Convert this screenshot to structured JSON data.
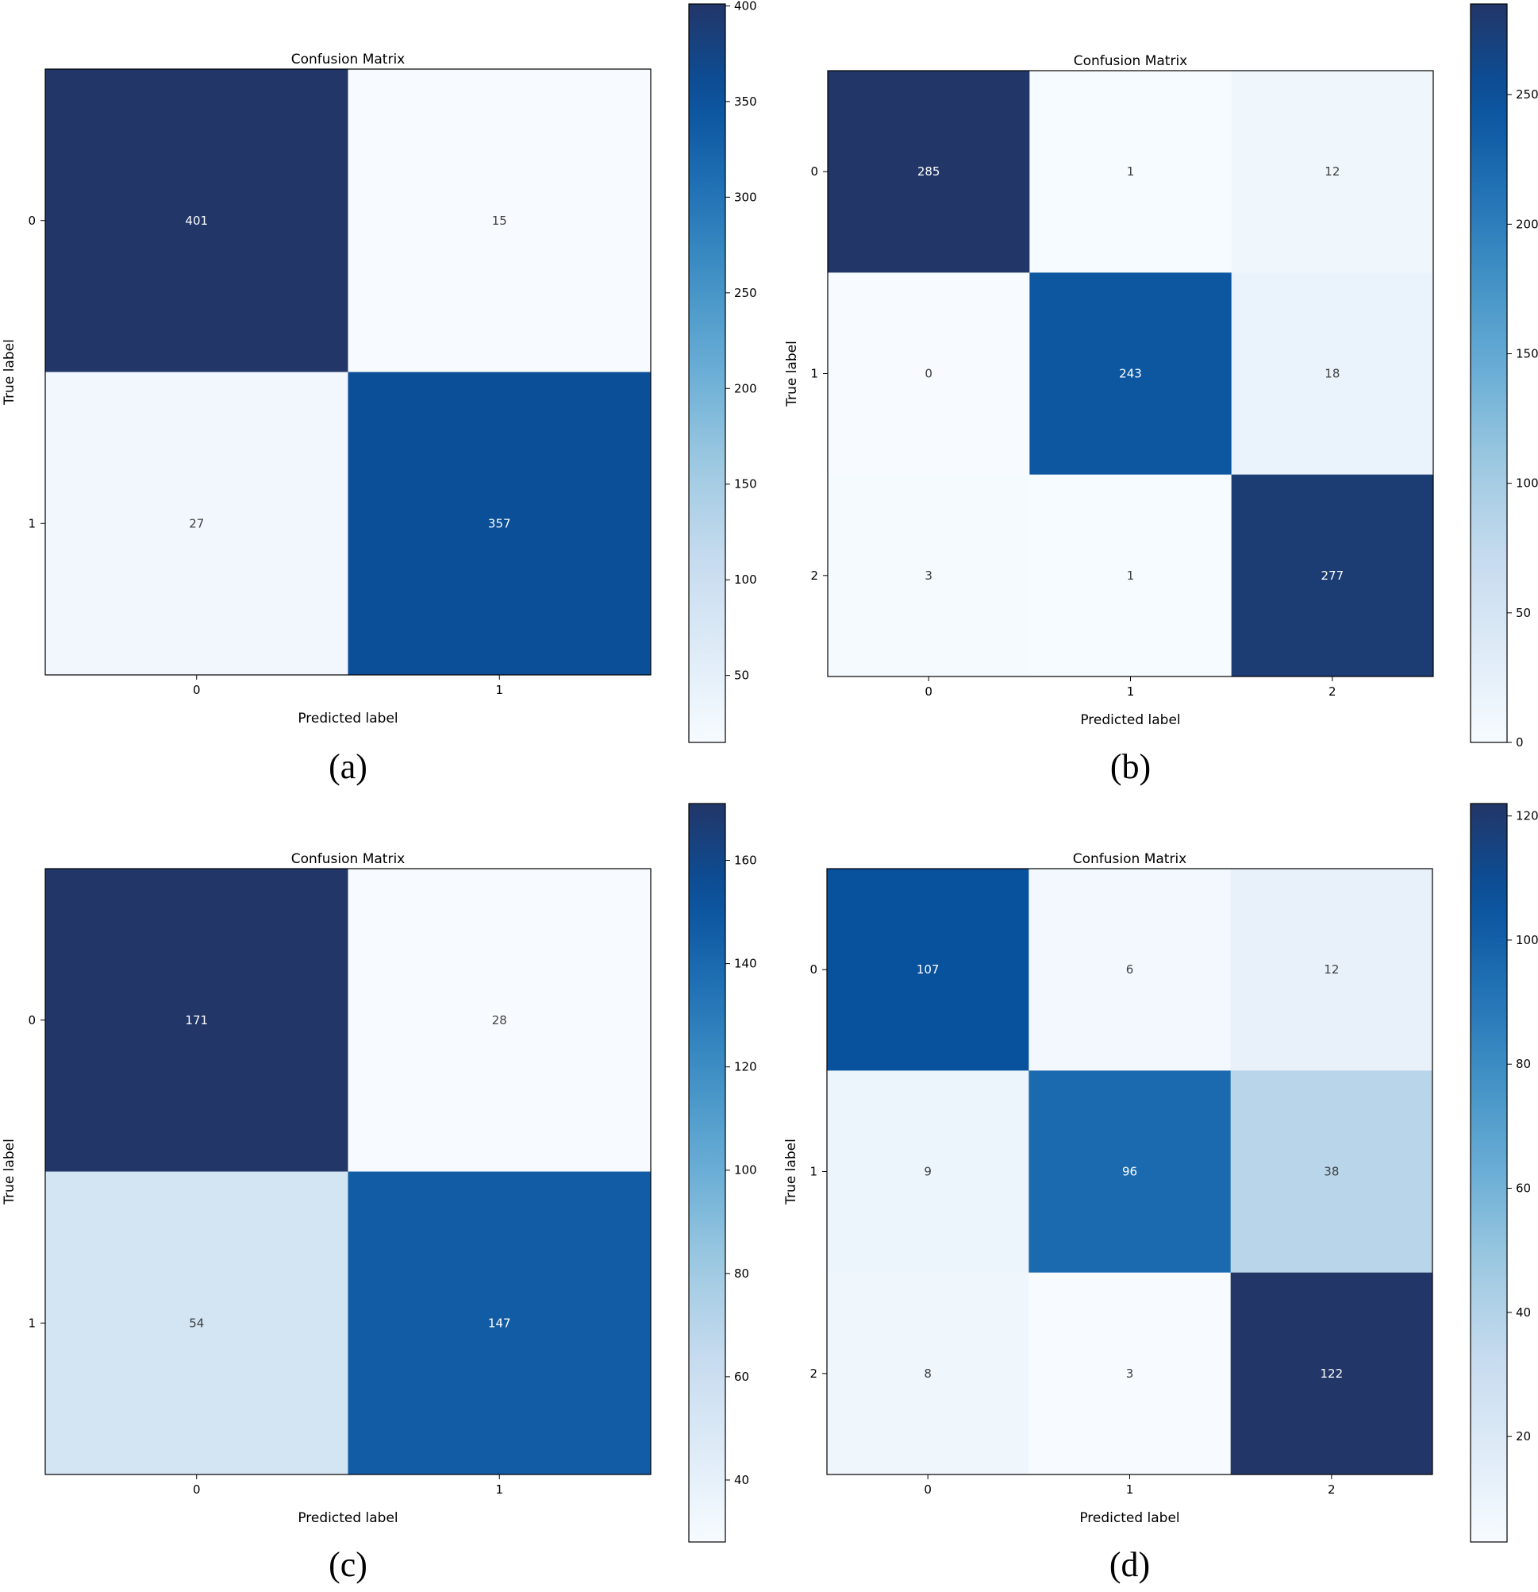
{
  "chart_data": [
    {
      "type": "heatmap",
      "panel": "(a)",
      "title": "Confusion Matrix",
      "xlabel": "Predicted label",
      "ylabel": "True label",
      "x_ticks": [
        "0",
        "1"
      ],
      "y_ticks": [
        "0",
        "1"
      ],
      "matrix": [
        [
          401,
          15
        ],
        [
          27,
          357
        ]
      ],
      "colorbar": {
        "range": [
          15,
          401
        ],
        "ticks": [
          50,
          100,
          150,
          200,
          250,
          300,
          350,
          400
        ],
        "colormap": "Blues"
      }
    },
    {
      "type": "heatmap",
      "panel": "(b)",
      "title": "Confusion Matrix",
      "xlabel": "Predicted label",
      "ylabel": "True label",
      "x_ticks": [
        "0",
        "1",
        "2"
      ],
      "y_ticks": [
        "0",
        "1",
        "2"
      ],
      "matrix": [
        [
          285,
          1,
          12
        ],
        [
          0,
          243,
          18
        ],
        [
          3,
          1,
          277
        ]
      ],
      "colorbar": {
        "range": [
          0,
          285
        ],
        "ticks": [
          0,
          50,
          100,
          150,
          200,
          250
        ],
        "colormap": "Blues"
      }
    },
    {
      "type": "heatmap",
      "panel": "(c)",
      "title": "Confusion Matrix",
      "xlabel": "Predicted label",
      "ylabel": "True label",
      "x_ticks": [
        "0",
        "1"
      ],
      "y_ticks": [
        "0",
        "1"
      ],
      "matrix": [
        [
          171,
          28
        ],
        [
          54,
          147
        ]
      ],
      "colorbar": {
        "range": [
          28,
          171
        ],
        "ticks": [
          40,
          60,
          80,
          100,
          120,
          140,
          160
        ],
        "colormap": "Blues"
      }
    },
    {
      "type": "heatmap",
      "panel": "(d)",
      "title": "Confusion Matrix",
      "xlabel": "Predicted label",
      "ylabel": "True label",
      "x_ticks": [
        "0",
        "1",
        "2"
      ],
      "y_ticks": [
        "0",
        "1",
        "2"
      ],
      "matrix": [
        [
          107,
          6,
          12
        ],
        [
          9,
          96,
          38
        ],
        [
          8,
          3,
          122
        ]
      ],
      "colorbar": {
        "range": [
          3,
          122
        ],
        "ticks": [
          20,
          40,
          60,
          80,
          100,
          120
        ],
        "colormap": "Blues"
      }
    }
  ],
  "colors": {
    "text_light": "#ffffff",
    "text_dark": "#404040",
    "axis": "#000000"
  }
}
